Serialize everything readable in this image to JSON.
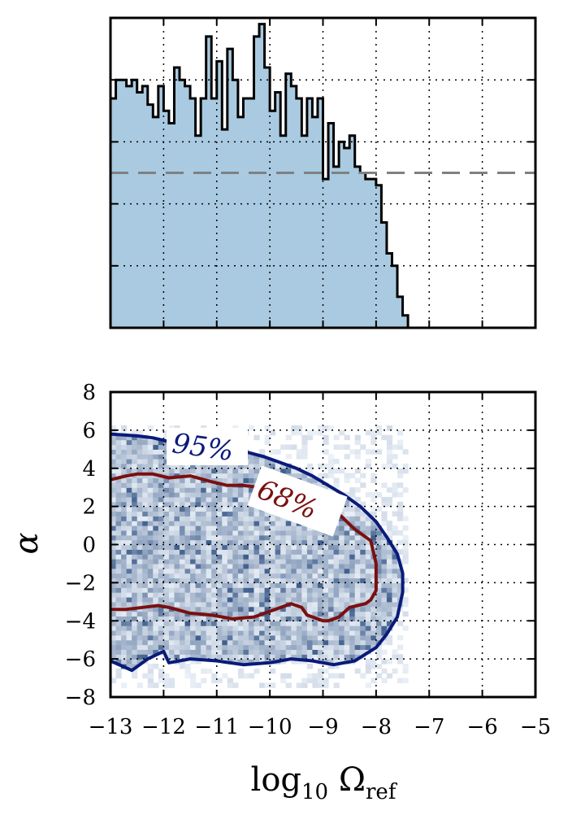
{
  "chart_data": [
    {
      "type": "area",
      "panel": "top",
      "xlim": [
        -13,
        -5
      ],
      "grid": true,
      "y_ticks_labeled": false,
      "fill_color": "#a9cae0",
      "line_color": "#000000",
      "reference_line": {
        "style": "dashed",
        "color": "#808080",
        "y": 2.5
      },
      "ylim": [
        0,
        5
      ],
      "x": [
        -13.0,
        -12.9,
        -12.8,
        -12.7,
        -12.6,
        -12.5,
        -12.4,
        -12.3,
        -12.2,
        -12.1,
        -12.0,
        -11.9,
        -11.8,
        -11.7,
        -11.6,
        -11.5,
        -11.4,
        -11.3,
        -11.2,
        -11.1,
        -11.0,
        -10.9,
        -10.8,
        -10.7,
        -10.6,
        -10.5,
        -10.4,
        -10.3,
        -10.2,
        -10.1,
        -10.0,
        -9.9,
        -9.8,
        -9.7,
        -9.6,
        -9.5,
        -9.4,
        -9.3,
        -9.2,
        -9.1,
        -9.0,
        -8.9,
        -8.8,
        -8.7,
        -8.6,
        -8.5,
        -8.4,
        -8.3,
        -8.2,
        -8.1,
        -8.0,
        -7.9,
        -7.8,
        -7.7,
        -7.6,
        -7.5
      ],
      "values": [
        3.7,
        4.0,
        4.0,
        3.9,
        4.0,
        3.8,
        3.9,
        3.6,
        3.4,
        3.9,
        3.5,
        3.3,
        4.2,
        4.0,
        3.9,
        3.7,
        3.1,
        3.7,
        4.7,
        3.7,
        4.3,
        3.2,
        4.5,
        4.0,
        3.4,
        3.7,
        3.7,
        4.7,
        4.9,
        4.2,
        3.5,
        3.8,
        3.1,
        4.1,
        3.9,
        3.7,
        3.1,
        3.7,
        3.4,
        3.7,
        2.4,
        3.3,
        2.6,
        3.0,
        2.9,
        3.1,
        2.6,
        2.5,
        2.4,
        2.4,
        2.3,
        1.7,
        1.2,
        1.0,
        0.5,
        0.2
      ]
    },
    {
      "type": "heatmap",
      "panel": "bottom",
      "xlabel": "log10 Ωref",
      "ylabel": "α",
      "xlim": [
        -13,
        -5
      ],
      "ylim": [
        -8,
        8
      ],
      "x_ticks": [
        "−13",
        "−12",
        "−11",
        "−10",
        "−9",
        "−8",
        "−7",
        "−6",
        "−5"
      ],
      "y_ticks": [
        "8",
        "6",
        "4",
        "2",
        "0",
        "−2",
        "−4",
        "−6",
        "−8"
      ],
      "grid": true,
      "colormap": "Blues",
      "contours": [
        {
          "label": "95%",
          "color": "#0a1a7a",
          "x": [
            -13.0,
            -12.5,
            -12.2,
            -11.9,
            -11.5,
            -11.0,
            -10.5,
            -10.1,
            -9.8,
            -9.5,
            -9.2,
            -8.9,
            -8.6,
            -8.3,
            -8.0,
            -7.8,
            -7.6,
            -7.5,
            -7.5,
            -7.6,
            -7.8,
            -8.0,
            -8.4,
            -8.8,
            -9.2,
            -9.6,
            -10.0,
            -10.5,
            -11.0,
            -11.5,
            -11.9,
            -12.0,
            -12.3,
            -12.6,
            -13.0
          ],
          "y": [
            5.8,
            5.7,
            5.6,
            5.4,
            5.3,
            5.1,
            4.9,
            4.6,
            4.3,
            4.0,
            3.6,
            3.1,
            2.6,
            2.0,
            1.2,
            0.4,
            -0.5,
            -1.5,
            -2.5,
            -3.8,
            -4.7,
            -5.4,
            -6.1,
            -6.3,
            -6.1,
            -6.0,
            -6.2,
            -6.3,
            -6.1,
            -6.0,
            -6.2,
            -5.6,
            -6.0,
            -6.6,
            -6.1
          ]
        },
        {
          "label": "68%",
          "color": "#7a1010",
          "x": [
            -13.0,
            -12.7,
            -12.5,
            -12.2,
            -11.9,
            -11.5,
            -11.1,
            -10.8,
            -10.5,
            -9.9,
            -9.6,
            -9.3,
            -9.0,
            -8.7,
            -8.4,
            -8.1,
            -8.0,
            -8.0,
            -8.1,
            -8.2,
            -8.5,
            -8.7,
            -8.9,
            -9.0,
            -9.1,
            -9.3,
            -9.4,
            -9.6,
            -9.9,
            -10.3,
            -10.7,
            -11.1,
            -11.5,
            -11.9,
            -12.1,
            -12.4,
            -12.7,
            -13.0
          ],
          "y": [
            3.4,
            3.6,
            3.7,
            3.7,
            3.5,
            3.6,
            3.3,
            3.1,
            3.1,
            2.9,
            2.6,
            2.3,
            2.0,
            1.6,
            0.8,
            0.2,
            -1.0,
            -2.4,
            -2.9,
            -3.1,
            -3.3,
            -3.8,
            -4.0,
            -4.0,
            -3.9,
            -3.7,
            -3.3,
            -3.1,
            -3.4,
            -3.8,
            -3.9,
            -3.7,
            -3.6,
            -3.3,
            -3.2,
            -3.3,
            -3.4,
            -3.4
          ]
        }
      ]
    }
  ]
}
